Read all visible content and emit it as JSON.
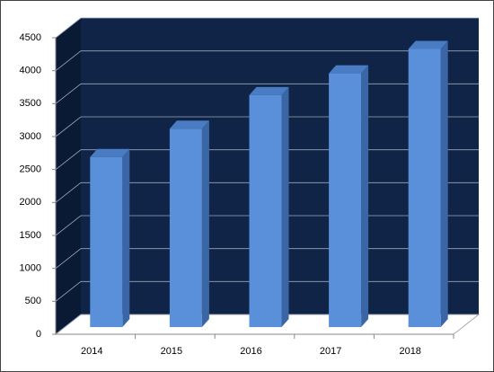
{
  "chart_data": {
    "type": "bar3d",
    "categories": [
      "2014",
      "2015",
      "2016",
      "2017",
      "2018"
    ],
    "values": [
      2580,
      3010,
      3520,
      3850,
      4220
    ],
    "color": "#5a8fd9",
    "ylim": [
      0,
      4500
    ],
    "yticks": [
      0,
      500,
      1000,
      1500,
      2000,
      2500,
      3000,
      3500,
      4000,
      4500
    ],
    "grid": true
  }
}
